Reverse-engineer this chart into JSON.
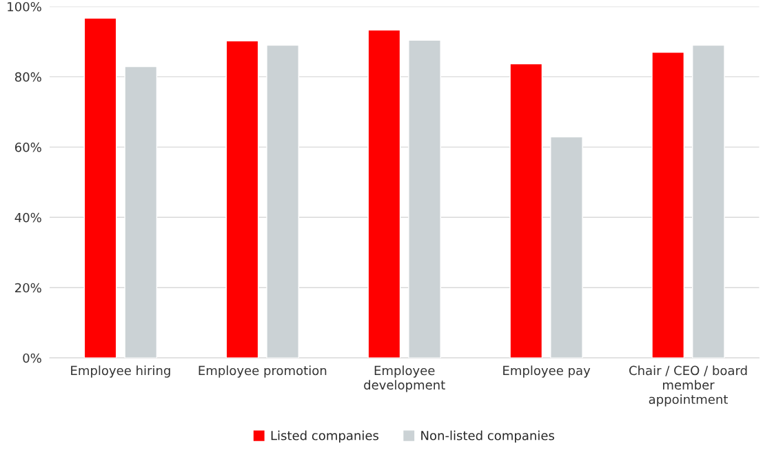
{
  "chart_data": {
    "type": "bar",
    "categories": [
      "Employee hiring",
      "Employee promotion",
      "Employee\ndevelopment",
      "Employee pay",
      "Chair / CEO / board\nmember\nappointment"
    ],
    "series": [
      {
        "name": "Listed companies",
        "color": "#ff0000",
        "values": [
          96.7,
          90.2,
          93.3,
          83.7,
          87.0
        ]
      },
      {
        "name": "Non-listed companies",
        "color": "#cbd2d5",
        "values": [
          82.9,
          89.0,
          90.4,
          62.9,
          89.0
        ]
      }
    ],
    "ylim": [
      0,
      100
    ],
    "yticks": [
      {
        "value": 0,
        "label": "0%"
      },
      {
        "value": 20,
        "label": "20%"
      },
      {
        "value": 40,
        "label": "40%"
      },
      {
        "value": 60,
        "label": "60%"
      },
      {
        "value": 80,
        "label": "80%"
      },
      {
        "value": 100,
        "label": "100%"
      }
    ],
    "grid": "y",
    "legend": "bottom"
  }
}
